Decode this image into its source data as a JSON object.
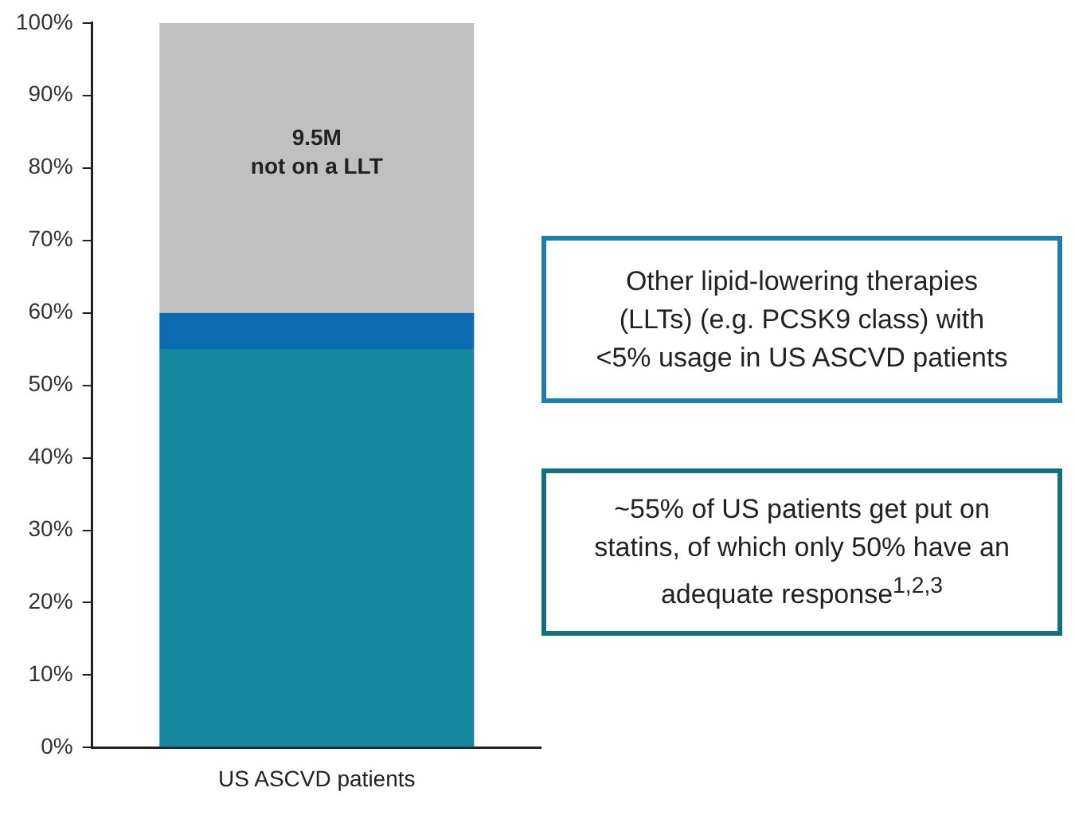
{
  "chart_data": {
    "type": "bar",
    "stacked": true,
    "categories": [
      "US ASCVD patients"
    ],
    "series": [
      {
        "color": "#13879d",
        "values": [
          55
        ]
      },
      {
        "color": "#0c6cb2",
        "values": [
          5
        ]
      },
      {
        "color": "#c0c0c0",
        "values": [
          40
        ]
      }
    ],
    "ylim": [
      0,
      100
    ],
    "yticks": [
      {
        "value": 0,
        "label": "0%"
      },
      {
        "value": 10,
        "label": "10%"
      },
      {
        "value": 20,
        "label": "20%"
      },
      {
        "value": 30,
        "label": "30%"
      },
      {
        "value": 40,
        "label": "40%"
      },
      {
        "value": 50,
        "label": "50%"
      },
      {
        "value": 60,
        "label": "60%"
      },
      {
        "value": 70,
        "label": "70%"
      },
      {
        "value": 80,
        "label": "80%"
      },
      {
        "value": 90,
        "label": "90%"
      },
      {
        "value": 100,
        "label": "100%"
      }
    ],
    "grid": false,
    "legend": false,
    "annotations": [
      "9.5M\nnot on a LLT",
      "Other lipid-lowering therapies (LLTs) (e.g. PCSK9 class) with <5% usage in US ASCVD patients",
      "~55% of US patients get put on statins, of which only 50% have an adequate response$^{1,2,3}$"
    ]
  }
}
